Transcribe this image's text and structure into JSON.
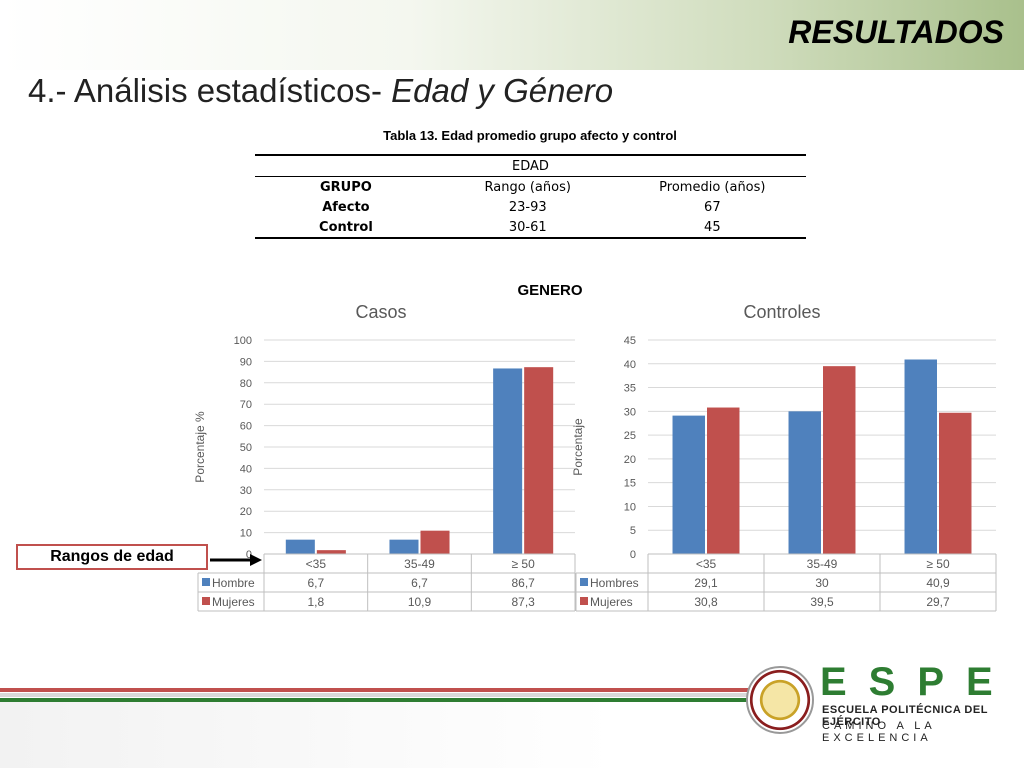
{
  "header": {
    "heading": "RESULTADOS"
  },
  "title": {
    "prefix": "4.- Análisis estadísticos- ",
    "italic": "Edad y Género"
  },
  "age_table": {
    "caption": "Tabla 13. Edad promedio grupo afecto y control",
    "group_header": "EDAD",
    "columns": [
      "GRUPO",
      "Rango (años)",
      "Promedio (años)"
    ],
    "rows": [
      [
        "Afecto",
        "23-93",
        "67"
      ],
      [
        "Control",
        "30-61",
        "45"
      ]
    ]
  },
  "genero_label": "GENERO",
  "side_label": "Rangos de edad",
  "footer": {
    "brand": "ESPE",
    "line1": "ESCUELA POLITÉCNICA DEL EJÉRCITO",
    "line2": "CAMINO A LA EXCELENCIA"
  },
  "colors": {
    "blue": "#4f81bd",
    "red": "#c0504d"
  },
  "chart_data": [
    {
      "type": "bar",
      "title": "Casos",
      "ylabel": "Porcentaje %",
      "categories": [
        "<35",
        "35-49",
        "≥ 50"
      ],
      "ylim": [
        0,
        100
      ],
      "yticks": [
        0,
        10,
        20,
        30,
        40,
        50,
        60,
        70,
        80,
        90,
        100
      ],
      "series": [
        {
          "name": "Hombre",
          "values": [
            6.7,
            6.7,
            86.7
          ],
          "labels": [
            "6,7",
            "6,7",
            "86,7"
          ],
          "color": "#4f81bd"
        },
        {
          "name": "Mujeres",
          "values": [
            1.8,
            10.9,
            87.3
          ],
          "labels": [
            "1,8",
            "10,9",
            "87,3"
          ],
          "color": "#c0504d"
        }
      ]
    },
    {
      "type": "bar",
      "title": "Controles",
      "ylabel": "Porcentaje",
      "categories": [
        "<35",
        "35-49",
        "≥ 50"
      ],
      "ylim": [
        0,
        45
      ],
      "yticks": [
        0,
        5,
        10,
        15,
        20,
        25,
        30,
        35,
        40,
        45
      ],
      "series": [
        {
          "name": "Hombres",
          "values": [
            29.1,
            30,
            40.9
          ],
          "labels": [
            "29,1",
            "30",
            "40,9"
          ],
          "color": "#4f81bd"
        },
        {
          "name": "Mujeres",
          "values": [
            30.8,
            39.5,
            29.7
          ],
          "labels": [
            "30,8",
            "39,5",
            "29,7"
          ],
          "color": "#c0504d"
        }
      ]
    }
  ]
}
